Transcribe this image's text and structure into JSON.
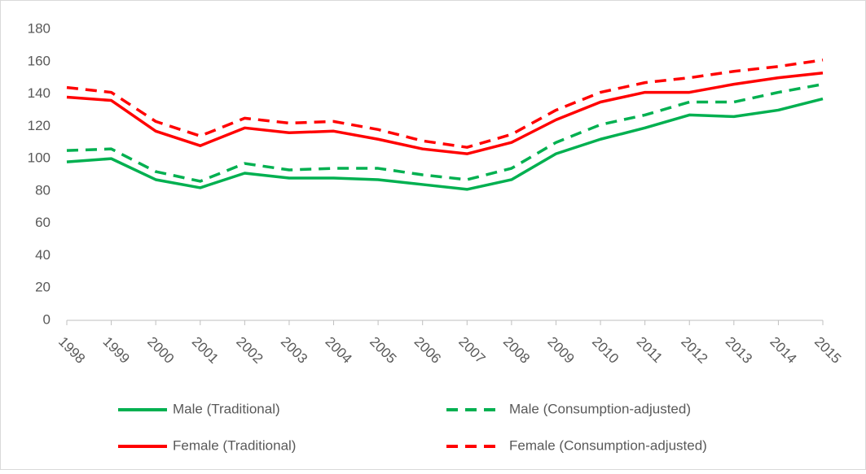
{
  "chart_data": {
    "type": "line",
    "categories": [
      "1998",
      "1999",
      "2000",
      "2001",
      "2002",
      "2003",
      "2004",
      "2005",
      "2006",
      "2007",
      "2008",
      "2009",
      "2010",
      "2011",
      "2012",
      "2013",
      "2014",
      "2015"
    ],
    "series": [
      {
        "name": "Male (Traditional)",
        "color": "#00b050",
        "dashed": false,
        "values": [
          98,
          100,
          87,
          82,
          91,
          88,
          88,
          87,
          84,
          81,
          87,
          103,
          112,
          119,
          127,
          126,
          130,
          137
        ]
      },
      {
        "name": "Male (Consumption-adjusted)",
        "color": "#00b050",
        "dashed": true,
        "values": [
          105,
          106,
          92,
          86,
          97,
          93,
          94,
          94,
          90,
          87,
          94,
          110,
          121,
          127,
          135,
          135,
          141,
          146
        ]
      },
      {
        "name": "Female (Traditional)",
        "color": "#ff0000",
        "dashed": false,
        "values": [
          138,
          136,
          117,
          108,
          119,
          116,
          117,
          112,
          106,
          103,
          110,
          124,
          135,
          141,
          141,
          146,
          150,
          153
        ]
      },
      {
        "name": "Female (Consumption-adjusted)",
        "color": "#ff0000",
        "dashed": true,
        "values": [
          144,
          141,
          123,
          114,
          125,
          122,
          123,
          118,
          111,
          107,
          115,
          130,
          141,
          147,
          150,
          154,
          157,
          161
        ]
      }
    ],
    "ylim": [
      0,
      180
    ],
    "yticks": [
      0,
      20,
      40,
      60,
      80,
      100,
      120,
      140,
      160,
      180
    ],
    "grid": false,
    "legend": "bottom"
  }
}
